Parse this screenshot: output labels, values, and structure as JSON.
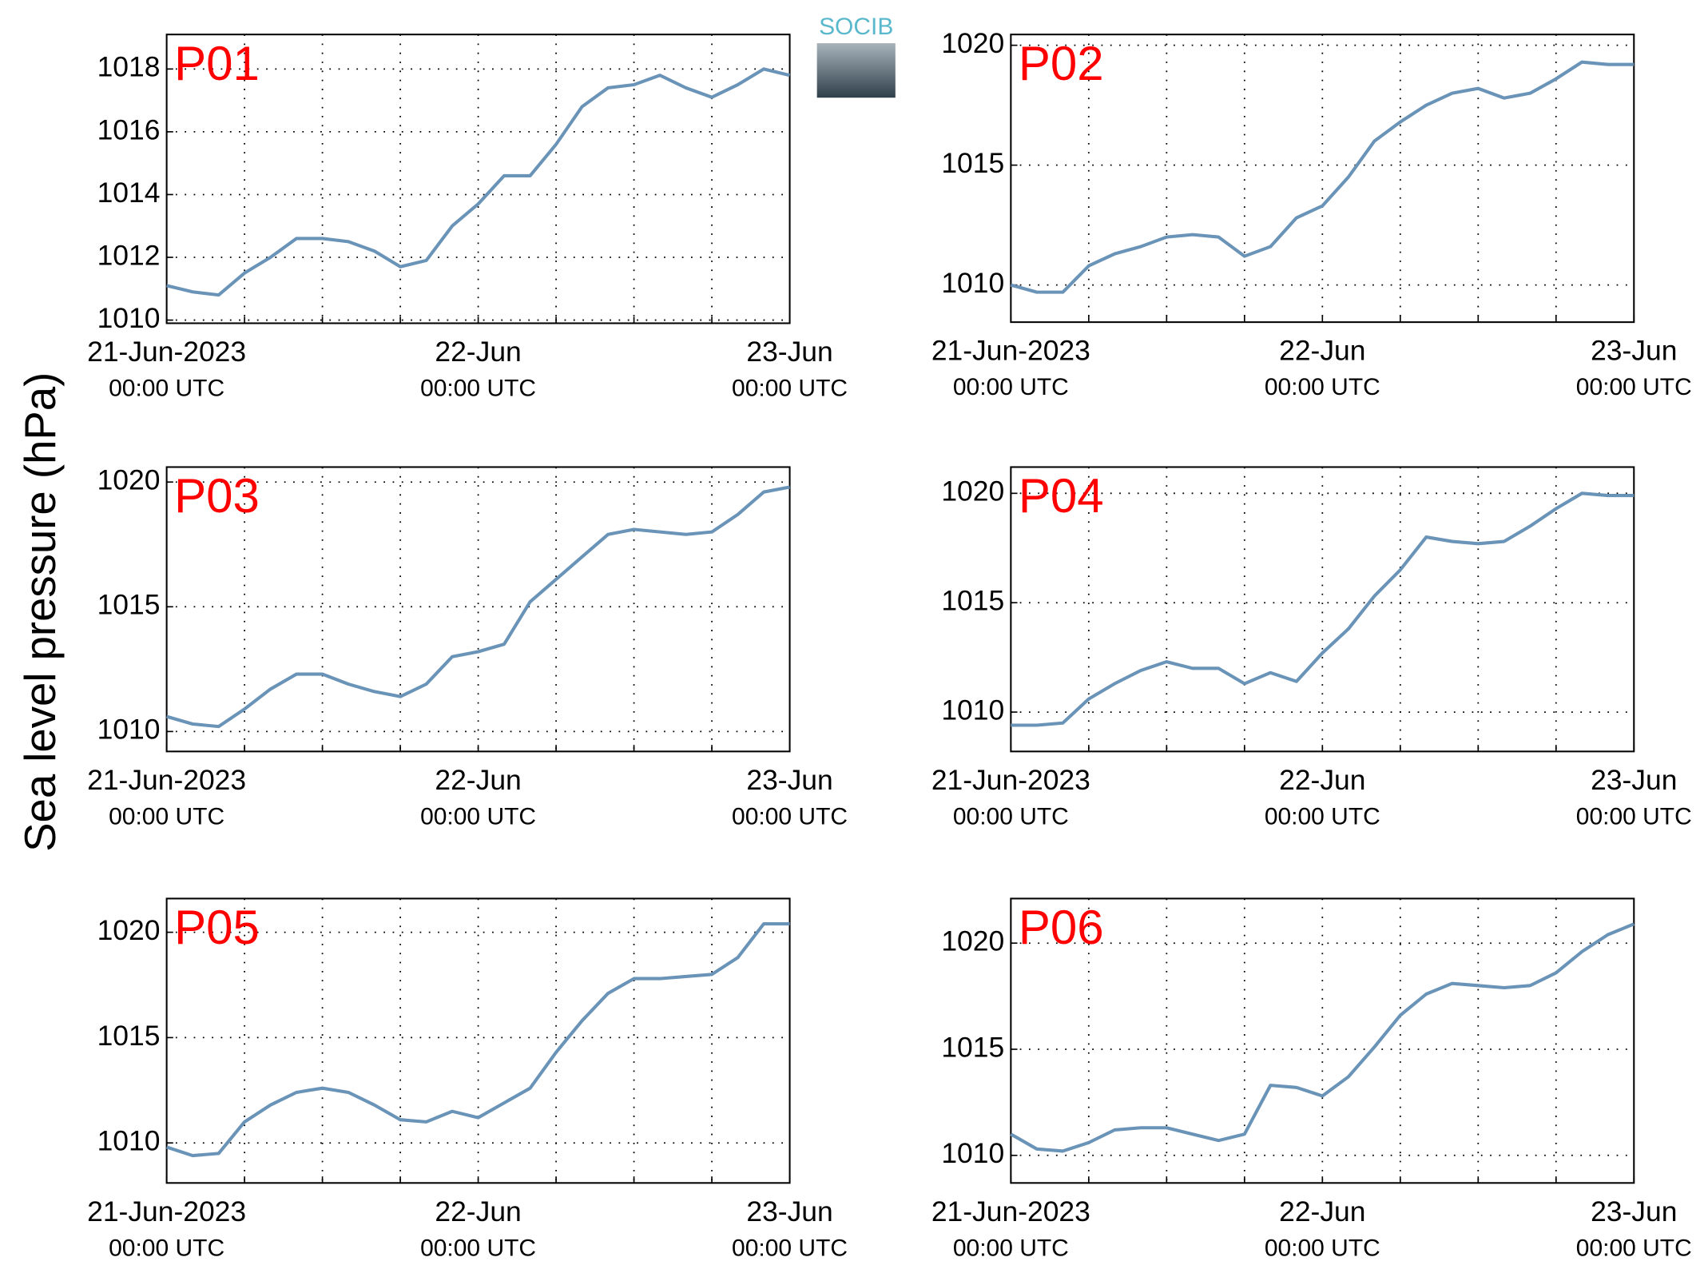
{
  "y_label": "Sea level pressure (hPa)",
  "logo": "SOCIB",
  "chart_data": [
    {
      "type": "line",
      "title": "P01",
      "color": "#6a93b8",
      "grid": true,
      "x": [
        "2023-06-21T00:00",
        "2023-06-21T02:00",
        "2023-06-21T04:00",
        "2023-06-21T06:00",
        "2023-06-21T08:00",
        "2023-06-21T10:00",
        "2023-06-21T12:00",
        "2023-06-21T14:00",
        "2023-06-21T16:00",
        "2023-06-21T18:00",
        "2023-06-21T20:00",
        "2023-06-21T22:00",
        "2023-06-22T00:00",
        "2023-06-22T02:00",
        "2023-06-22T04:00",
        "2023-06-22T06:00",
        "2023-06-22T08:00",
        "2023-06-22T10:00",
        "2023-06-22T12:00",
        "2023-06-22T14:00",
        "2023-06-22T16:00",
        "2023-06-22T18:00",
        "2023-06-22T20:00",
        "2023-06-22T22:00",
        "2023-06-23T00:00"
      ],
      "values": [
        1011.1,
        1010.9,
        1010.8,
        1011.5,
        1012.0,
        1012.6,
        1012.6,
        1012.5,
        1012.2,
        1011.7,
        1011.9,
        1013.0,
        1013.7,
        1014.6,
        1014.6,
        1015.6,
        1016.8,
        1017.4,
        1017.5,
        1017.8,
        1017.4,
        1017.1,
        1017.5,
        1018.0,
        1017.8
      ],
      "xlim": [
        "2023-06-21T00:00",
        "2023-06-23T00:00"
      ],
      "xticks": [
        {
          "value": "2023-06-21T00:00",
          "label": "21-Jun-2023",
          "sublabel": "00:00 UTC"
        },
        {
          "value": "2023-06-21T06:00",
          "label": null
        },
        {
          "value": "2023-06-21T12:00",
          "label": null
        },
        {
          "value": "2023-06-21T18:00",
          "label": null
        },
        {
          "value": "2023-06-22T00:00",
          "label": "22-Jun",
          "sublabel": "00:00 UTC"
        },
        {
          "value": "2023-06-22T06:00",
          "label": null
        },
        {
          "value": "2023-06-22T12:00",
          "label": null
        },
        {
          "value": "2023-06-22T18:00",
          "label": null
        },
        {
          "value": "2023-06-23T00:00",
          "label": "23-Jun",
          "sublabel": "00:00 UTC"
        }
      ],
      "ylim": [
        1009.9,
        1019.1
      ],
      "yticks": [
        1010,
        1012,
        1014,
        1016,
        1018
      ]
    },
    {
      "type": "line",
      "title": "P02",
      "color": "#6a93b8",
      "grid": true,
      "x": [
        "2023-06-21T00:00",
        "2023-06-21T02:00",
        "2023-06-21T04:00",
        "2023-06-21T06:00",
        "2023-06-21T08:00",
        "2023-06-21T10:00",
        "2023-06-21T12:00",
        "2023-06-21T14:00",
        "2023-06-21T16:00",
        "2023-06-21T18:00",
        "2023-06-21T20:00",
        "2023-06-21T22:00",
        "2023-06-22T00:00",
        "2023-06-22T02:00",
        "2023-06-22T04:00",
        "2023-06-22T06:00",
        "2023-06-22T08:00",
        "2023-06-22T10:00",
        "2023-06-22T12:00",
        "2023-06-22T14:00",
        "2023-06-22T16:00",
        "2023-06-22T18:00",
        "2023-06-22T20:00",
        "2023-06-22T22:00",
        "2023-06-23T00:00"
      ],
      "values": [
        1010.0,
        1009.7,
        1009.7,
        1010.8,
        1011.3,
        1011.6,
        1012.0,
        1012.1,
        1012.0,
        1011.2,
        1011.6,
        1012.8,
        1013.3,
        1014.5,
        1016.0,
        1016.8,
        1017.5,
        1018.0,
        1018.2,
        1017.8,
        1018.0,
        1018.6,
        1019.3,
        1019.2,
        1019.2
      ],
      "xlim": [
        "2023-06-21T00:00",
        "2023-06-23T00:00"
      ],
      "xticks": [
        {
          "value": "2023-06-21T00:00",
          "label": "21-Jun-2023",
          "sublabel": "00:00 UTC"
        },
        {
          "value": "2023-06-21T06:00",
          "label": null
        },
        {
          "value": "2023-06-21T12:00",
          "label": null
        },
        {
          "value": "2023-06-21T18:00",
          "label": null
        },
        {
          "value": "2023-06-22T00:00",
          "label": "22-Jun",
          "sublabel": "00:00 UTC"
        },
        {
          "value": "2023-06-22T06:00",
          "label": null
        },
        {
          "value": "2023-06-22T12:00",
          "label": null
        },
        {
          "value": "2023-06-22T18:00",
          "label": null
        },
        {
          "value": "2023-06-23T00:00",
          "label": "23-Jun",
          "sublabel": "00:00 UTC"
        }
      ],
      "ylim": [
        1008.45,
        1020.45
      ],
      "yticks": [
        1010,
        1015,
        1020
      ]
    },
    {
      "type": "line",
      "title": "P03",
      "color": "#6a93b8",
      "grid": true,
      "x": [
        "2023-06-21T00:00",
        "2023-06-21T02:00",
        "2023-06-21T04:00",
        "2023-06-21T06:00",
        "2023-06-21T08:00",
        "2023-06-21T10:00",
        "2023-06-21T12:00",
        "2023-06-21T14:00",
        "2023-06-21T16:00",
        "2023-06-21T18:00",
        "2023-06-21T20:00",
        "2023-06-21T22:00",
        "2023-06-22T00:00",
        "2023-06-22T02:00",
        "2023-06-22T04:00",
        "2023-06-22T06:00",
        "2023-06-22T08:00",
        "2023-06-22T10:00",
        "2023-06-22T12:00",
        "2023-06-22T14:00",
        "2023-06-22T16:00",
        "2023-06-22T18:00",
        "2023-06-22T20:00",
        "2023-06-22T22:00",
        "2023-06-23T00:00"
      ],
      "values": [
        1010.6,
        1010.3,
        1010.2,
        1010.9,
        1011.7,
        1012.3,
        1012.3,
        1011.9,
        1011.6,
        1011.4,
        1011.9,
        1013.0,
        1013.2,
        1013.5,
        1015.2,
        1016.1,
        1017.0,
        1017.9,
        1018.1,
        1018.0,
        1017.9,
        1018.0,
        1018.7,
        1019.6,
        1019.8
      ],
      "xlim": [
        "2023-06-21T00:00",
        "2023-06-23T00:00"
      ],
      "xticks": [
        {
          "value": "2023-06-21T00:00",
          "label": "21-Jun-2023",
          "sublabel": "00:00 UTC"
        },
        {
          "value": "2023-06-21T06:00",
          "label": null
        },
        {
          "value": "2023-06-21T12:00",
          "label": null
        },
        {
          "value": "2023-06-21T18:00",
          "label": null
        },
        {
          "value": "2023-06-22T00:00",
          "label": "22-Jun",
          "sublabel": "00:00 UTC"
        },
        {
          "value": "2023-06-22T06:00",
          "label": null
        },
        {
          "value": "2023-06-22T12:00",
          "label": null
        },
        {
          "value": "2023-06-22T18:00",
          "label": null
        },
        {
          "value": "2023-06-23T00:00",
          "label": "23-Jun",
          "sublabel": "00:00 UTC"
        }
      ],
      "ylim": [
        1009.2,
        1020.6
      ],
      "yticks": [
        1010,
        1015,
        1020
      ]
    },
    {
      "type": "line",
      "title": "P04",
      "color": "#6a93b8",
      "grid": true,
      "x": [
        "2023-06-21T00:00",
        "2023-06-21T02:00",
        "2023-06-21T04:00",
        "2023-06-21T06:00",
        "2023-06-21T08:00",
        "2023-06-21T10:00",
        "2023-06-21T12:00",
        "2023-06-21T14:00",
        "2023-06-21T16:00",
        "2023-06-21T18:00",
        "2023-06-21T20:00",
        "2023-06-21T22:00",
        "2023-06-22T00:00",
        "2023-06-22T02:00",
        "2023-06-22T04:00",
        "2023-06-22T06:00",
        "2023-06-22T08:00",
        "2023-06-22T10:00",
        "2023-06-22T12:00",
        "2023-06-22T14:00",
        "2023-06-22T16:00",
        "2023-06-22T18:00",
        "2023-06-22T20:00",
        "2023-06-22T22:00",
        "2023-06-23T00:00"
      ],
      "values": [
        1009.4,
        1009.4,
        1009.5,
        1010.6,
        1011.3,
        1011.9,
        1012.3,
        1012.0,
        1012.0,
        1011.3,
        1011.8,
        1011.4,
        1012.7,
        1013.8,
        1015.3,
        1016.5,
        1018.0,
        1017.8,
        1017.7,
        1017.8,
        1018.5,
        1019.3,
        1020.0,
        1019.9,
        1019.9
      ],
      "xlim": [
        "2023-06-21T00:00",
        "2023-06-23T00:00"
      ],
      "xticks": [
        {
          "value": "2023-06-21T00:00",
          "label": "21-Jun-2023",
          "sublabel": "00:00 UTC"
        },
        {
          "value": "2023-06-21T06:00",
          "label": null
        },
        {
          "value": "2023-06-21T12:00",
          "label": null
        },
        {
          "value": "2023-06-21T18:00",
          "label": null
        },
        {
          "value": "2023-06-22T00:00",
          "label": "22-Jun",
          "sublabel": "00:00 UTC"
        },
        {
          "value": "2023-06-22T06:00",
          "label": null
        },
        {
          "value": "2023-06-22T12:00",
          "label": null
        },
        {
          "value": "2023-06-22T18:00",
          "label": null
        },
        {
          "value": "2023-06-23T00:00",
          "label": "23-Jun",
          "sublabel": "00:00 UTC"
        }
      ],
      "ylim": [
        1008.2,
        1021.2
      ],
      "yticks": [
        1010,
        1015,
        1020
      ]
    },
    {
      "type": "line",
      "title": "P05",
      "color": "#6a93b8",
      "grid": true,
      "x": [
        "2023-06-21T00:00",
        "2023-06-21T02:00",
        "2023-06-21T04:00",
        "2023-06-21T06:00",
        "2023-06-21T08:00",
        "2023-06-21T10:00",
        "2023-06-21T12:00",
        "2023-06-21T14:00",
        "2023-06-21T16:00",
        "2023-06-21T18:00",
        "2023-06-21T20:00",
        "2023-06-21T22:00",
        "2023-06-22T00:00",
        "2023-06-22T02:00",
        "2023-06-22T04:00",
        "2023-06-22T06:00",
        "2023-06-22T08:00",
        "2023-06-22T10:00",
        "2023-06-22T12:00",
        "2023-06-22T14:00",
        "2023-06-22T16:00",
        "2023-06-22T18:00",
        "2023-06-22T20:00",
        "2023-06-22T22:00",
        "2023-06-23T00:00"
      ],
      "values": [
        1009.8,
        1009.4,
        1009.5,
        1011.0,
        1011.8,
        1012.4,
        1012.6,
        1012.4,
        1011.8,
        1011.1,
        1011.0,
        1011.5,
        1011.2,
        1011.9,
        1012.6,
        1014.3,
        1015.8,
        1017.1,
        1017.8,
        1017.8,
        1017.9,
        1018.0,
        1018.8,
        1020.4,
        1020.4
      ],
      "xlim": [
        "2023-06-21T00:00",
        "2023-06-23T00:00"
      ],
      "xticks": [
        {
          "value": "2023-06-21T00:00",
          "label": "21-Jun-2023",
          "sublabel": "00:00 UTC"
        },
        {
          "value": "2023-06-21T06:00",
          "label": null
        },
        {
          "value": "2023-06-21T12:00",
          "label": null
        },
        {
          "value": "2023-06-21T18:00",
          "label": null
        },
        {
          "value": "2023-06-22T00:00",
          "label": "22-Jun",
          "sublabel": "00:00 UTC"
        },
        {
          "value": "2023-06-22T06:00",
          "label": null
        },
        {
          "value": "2023-06-22T12:00",
          "label": null
        },
        {
          "value": "2023-06-22T18:00",
          "label": null
        },
        {
          "value": "2023-06-23T00:00",
          "label": "23-Jun",
          "sublabel": "00:00 UTC"
        }
      ],
      "ylim": [
        1008.1,
        1021.6
      ],
      "yticks": [
        1010,
        1015,
        1020
      ]
    },
    {
      "type": "line",
      "title": "P06",
      "color": "#6a93b8",
      "grid": true,
      "x": [
        "2023-06-21T00:00",
        "2023-06-21T02:00",
        "2023-06-21T04:00",
        "2023-06-21T06:00",
        "2023-06-21T08:00",
        "2023-06-21T10:00",
        "2023-06-21T12:00",
        "2023-06-21T14:00",
        "2023-06-21T16:00",
        "2023-06-21T18:00",
        "2023-06-21T20:00",
        "2023-06-21T22:00",
        "2023-06-22T00:00",
        "2023-06-22T02:00",
        "2023-06-22T04:00",
        "2023-06-22T06:00",
        "2023-06-22T08:00",
        "2023-06-22T10:00",
        "2023-06-22T12:00",
        "2023-06-22T14:00",
        "2023-06-22T16:00",
        "2023-06-22T18:00",
        "2023-06-22T20:00",
        "2023-06-22T22:00",
        "2023-06-23T00:00"
      ],
      "values": [
        1011.0,
        1010.3,
        1010.2,
        1010.6,
        1011.2,
        1011.3,
        1011.3,
        1011.0,
        1010.7,
        1011.0,
        1013.3,
        1013.2,
        1012.8,
        1013.7,
        1015.1,
        1016.6,
        1017.6,
        1018.1,
        1018.0,
        1017.9,
        1018.0,
        1018.6,
        1019.6,
        1020.4,
        1020.9
      ],
      "xlim": [
        "2023-06-21T00:00",
        "2023-06-23T00:00"
      ],
      "xticks": [
        {
          "value": "2023-06-21T00:00",
          "label": "21-Jun-2023",
          "sublabel": "00:00 UTC"
        },
        {
          "value": "2023-06-21T06:00",
          "label": null
        },
        {
          "value": "2023-06-21T12:00",
          "label": null
        },
        {
          "value": "2023-06-21T18:00",
          "label": null
        },
        {
          "value": "2023-06-22T00:00",
          "label": "22-Jun",
          "sublabel": "00:00 UTC"
        },
        {
          "value": "2023-06-22T06:00",
          "label": null
        },
        {
          "value": "2023-06-22T12:00",
          "label": null
        },
        {
          "value": "2023-06-22T18:00",
          "label": null
        },
        {
          "value": "2023-06-23T00:00",
          "label": "23-Jun",
          "sublabel": "00:00 UTC"
        }
      ],
      "ylim": [
        1008.7,
        1022.1
      ],
      "yticks": [
        1010,
        1015,
        1020
      ]
    }
  ]
}
